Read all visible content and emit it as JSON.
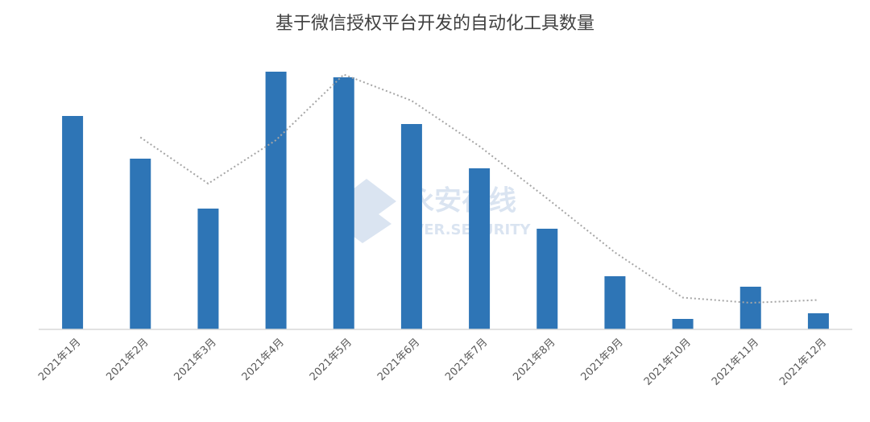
{
  "chart_data": {
    "type": "bar",
    "title": "基于微信授权平台开发的自动化工具数量",
    "categories": [
      "2021年1月",
      "2021年2月",
      "2021年3月",
      "2021年4月",
      "2021年5月",
      "2021年6月",
      "2021年7月",
      "2021年8月",
      "2021年9月",
      "2021年10月",
      "2021年11月",
      "2021年12月"
    ],
    "values": [
      265,
      212,
      150,
      320,
      313,
      255,
      200,
      125,
      66,
      13,
      53,
      20
    ],
    "color": "#2e75b6",
    "trend_values": [
      null,
      238.5,
      181,
      235,
      316.5,
      284,
      227.5,
      162.5,
      95.5,
      39.5,
      33,
      36.5
    ],
    "trend_color": "#a6a6a6",
    "ylim": [
      0,
      330
    ],
    "watermark": {
      "name": "永安在线",
      "subtitle": "EVER.SECURITY"
    }
  }
}
